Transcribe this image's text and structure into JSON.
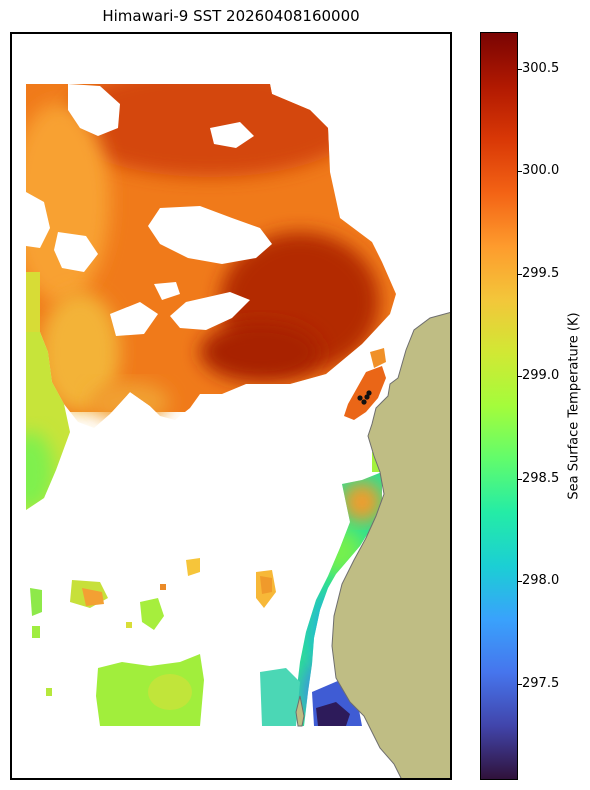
{
  "chart_data": {
    "type": "heatmap",
    "title": "Himawari-9 SST 20260408160000",
    "colorbar": {
      "label": "Sea Surface Temperature (K)",
      "min": 297.03,
      "max": 300.68,
      "ticks": [
        297.5,
        298.0,
        298.5,
        299.0,
        299.5,
        300.0,
        300.5
      ],
      "tick_labels": [
        "297.5",
        "298.0",
        "298.5",
        "299.0",
        "299.5",
        "300.0",
        "300.5"
      ],
      "colormap": "turbo"
    },
    "field_regions": [
      {
        "region": "north-central offshore",
        "sst_k": 300.6
      },
      {
        "region": "northern band",
        "sst_k": 300.3
      },
      {
        "region": "central offshore",
        "sst_k": 300.0
      },
      {
        "region": "northwest offshore",
        "sst_k": 299.7
      },
      {
        "region": "far western edge",
        "sst_k": 299.1
      },
      {
        "region": "southwestern patches",
        "sst_k": 299.2
      },
      {
        "region": "southern central patches",
        "sst_k": 298.9
      },
      {
        "region": "mid-coastal strip",
        "sst_k": 298.4
      },
      {
        "region": "southern coastal strip",
        "sst_k": 297.8
      },
      {
        "region": "southernmost coastal pocket",
        "sst_k": 297.2
      }
    ],
    "markers": [
      {
        "label": "",
        "count": 4
      }
    ],
    "land_color": "#bfbd84",
    "coast_color": "#6e6e6e",
    "missing_data_color": "#ffffff"
  }
}
